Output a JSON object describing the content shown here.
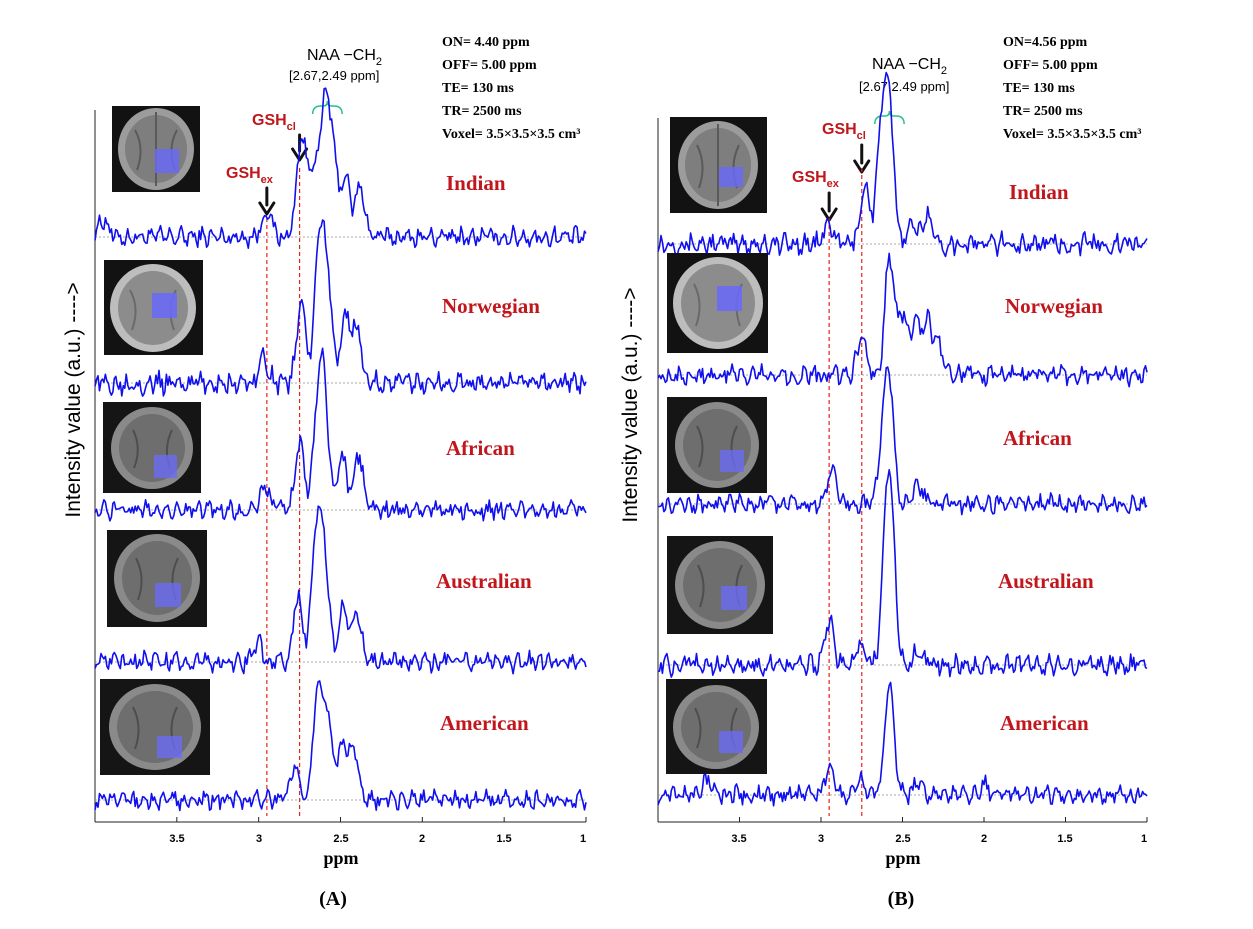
{
  "colors": {
    "trace": "#1010ee",
    "label": "#c0161c",
    "guide": "#e8231d",
    "baseline": "#8c8c8c",
    "bracket": "#2bbf8a",
    "voxel": "#6a6af5"
  },
  "chart_data": [
    {
      "type": "line",
      "panel_label": "(A)",
      "xlabel": "ppm",
      "ylabel": "Intensity value (a.u.) ---->",
      "xlim": [
        4.0,
        1.0
      ],
      "x_axis_reversed": true,
      "xticks": [
        "3.5",
        "3",
        "2.5",
        "2",
        "1.5",
        "1"
      ],
      "params": [
        "ON= 4.40 ppm",
        "OFF= 5.00 ppm",
        "TE= 130 ms",
        "TR= 2500 ms",
        "Voxel= 3.5×3.5×3.5 cm³"
      ],
      "annotations": {
        "naa_main": "NAA −CH",
        "naa_sub": "2",
        "naa_range": "[2.67,2.49 ppm]",
        "gsh_cl_main": "GSH",
        "gsh_cl_sub": "cl",
        "gsh_ex_main": "GSH",
        "gsh_ex_sub": "ex",
        "gsh_ex_ppm": 2.95,
        "gsh_cl_ppm": 2.75,
        "naa_bracket_ppm": [
          2.67,
          2.49
        ]
      },
      "series": [
        {
          "name": "Indian",
          "peaks": [
            [
              3.95,
              0.15
            ],
            [
              2.95,
              0.22
            ],
            [
              2.74,
              0.82
            ],
            [
              2.67,
              0.55
            ],
            [
              2.6,
              1.0
            ],
            [
              2.55,
              0.7
            ],
            [
              2.47,
              0.5
            ],
            [
              2.38,
              0.42
            ]
          ]
        },
        {
          "name": "Norwegian",
          "peaks": [
            [
              2.97,
              0.2
            ],
            [
              2.74,
              0.6
            ],
            [
              2.63,
              1.0
            ],
            [
              2.58,
              0.75
            ],
            [
              2.47,
              0.5
            ],
            [
              2.4,
              0.4
            ]
          ]
        },
        {
          "name": "African",
          "peaks": [
            [
              2.96,
              0.22
            ],
            [
              2.75,
              0.6
            ],
            [
              2.64,
              0.8
            ],
            [
              2.6,
              1.0
            ],
            [
              2.49,
              0.48
            ],
            [
              2.39,
              0.5
            ]
          ]
        },
        {
          "name": "Australian",
          "peaks": [
            [
              3.0,
              0.15
            ],
            [
              2.76,
              0.55
            ],
            [
              2.65,
              1.0
            ],
            [
              2.6,
              0.9
            ],
            [
              2.48,
              0.45
            ],
            [
              2.4,
              0.4
            ]
          ]
        },
        {
          "name": "American",
          "peaks": [
            [
              2.78,
              0.3
            ],
            [
              2.64,
              1.0
            ],
            [
              2.58,
              0.75
            ],
            [
              2.49,
              0.5
            ],
            [
              2.42,
              0.48
            ]
          ]
        }
      ]
    },
    {
      "type": "line",
      "panel_label": "(B)",
      "xlabel": "ppm",
      "ylabel": "Intensity value (a.u.) ---->",
      "xlim": [
        4.0,
        1.0
      ],
      "x_axis_reversed": true,
      "xticks": [
        "3.5",
        "3",
        "2.5",
        "2",
        "1.5",
        "1"
      ],
      "params": [
        "ON=4.56 ppm",
        "OFF= 5.00 ppm",
        "TE= 130 ms",
        "TR= 2500 ms",
        "Voxel= 3.5×3.5×3.5 cm³"
      ],
      "annotations": {
        "naa_main": "NAA −CH",
        "naa_sub": "2",
        "naa_range": "[2.67,2.49 ppm]",
        "gsh_cl_main": "GSH",
        "gsh_cl_sub": "cl",
        "gsh_ex_main": "GSH",
        "gsh_ex_sub": "ex",
        "gsh_ex_ppm": 2.95,
        "gsh_cl_ppm": 2.75,
        "naa_bracket_ppm": [
          2.67,
          2.49
        ]
      },
      "series": [
        {
          "name": "Indian",
          "peaks": [
            [
              2.95,
              0.15
            ],
            [
              2.73,
              0.45
            ],
            [
              2.63,
              0.85
            ],
            [
              2.58,
              1.0
            ],
            [
              2.45,
              0.15
            ],
            [
              2.35,
              0.25
            ]
          ]
        },
        {
          "name": "Norwegian",
          "peaks": [
            [
              2.75,
              0.3
            ],
            [
              2.58,
              1.0
            ],
            [
              2.5,
              0.5
            ],
            [
              2.42,
              0.42
            ],
            [
              2.35,
              0.45
            ],
            [
              2.28,
              0.25
            ]
          ]
        },
        {
          "name": "African",
          "peaks": [
            [
              2.93,
              0.3
            ],
            [
              2.62,
              0.5
            ],
            [
              2.58,
              1.0
            ],
            [
              2.4,
              0.15
            ]
          ]
        },
        {
          "name": "Australian",
          "peaks": [
            [
              2.95,
              0.35
            ],
            [
              2.76,
              0.2
            ],
            [
              2.6,
              0.9
            ],
            [
              2.57,
              1.0
            ],
            [
              2.4,
              0.12
            ]
          ]
        },
        {
          "name": "American",
          "peaks": [
            [
              3.7,
              0.12
            ],
            [
              2.95,
              0.25
            ],
            [
              2.76,
              0.15
            ],
            [
              2.58,
              1.0
            ],
            [
              2.4,
              0.12
            ],
            [
              2.0,
              0.1
            ]
          ]
        }
      ]
    }
  ]
}
